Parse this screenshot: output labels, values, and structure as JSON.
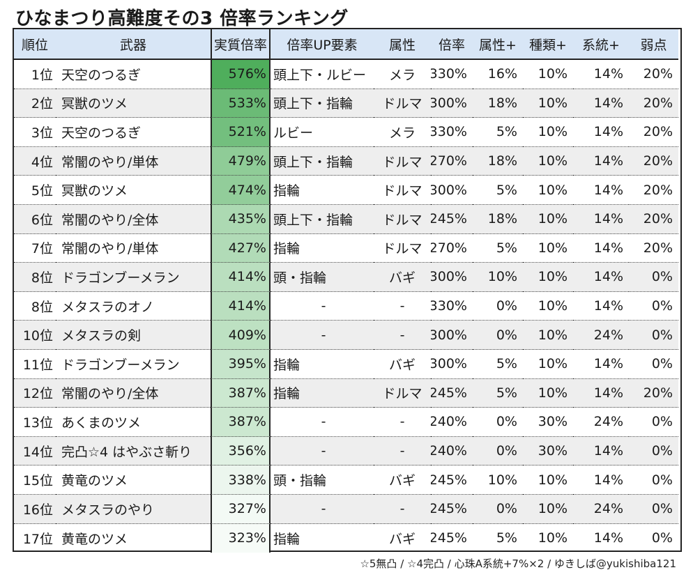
{
  "title": "ひなまつり高難度その3 倍率ランキング",
  "headers": [
    "順位",
    "武器",
    "実質倍率",
    "倍率UP要素",
    "属性",
    "倍率",
    "属性+",
    "種類+",
    "系統+",
    "弱点"
  ],
  "colors": {
    "header_bg": "#d8e6f6",
    "row_alt_bg": "#eeeeee",
    "eff_high": "#4fae5c",
    "eff_low": "#f6fbf7"
  },
  "rows": [
    {
      "rank": "1位",
      "weapon": "天空のつるぎ",
      "eff": "576%",
      "eff_value": 576,
      "up": "頭上下・ルビー",
      "attr": "メラ",
      "mult": "330%",
      "attr_plus": "16%",
      "kind_plus": "10%",
      "line_plus": "14%",
      "weak": "20%"
    },
    {
      "rank": "2位",
      "weapon": "冥獣のツメ",
      "eff": "533%",
      "eff_value": 533,
      "up": "頭上下・指輪",
      "attr": "ドルマ",
      "mult": "300%",
      "attr_plus": "18%",
      "kind_plus": "10%",
      "line_plus": "14%",
      "weak": "20%"
    },
    {
      "rank": "3位",
      "weapon": "天空のつるぎ",
      "eff": "521%",
      "eff_value": 521,
      "up": "ルビー",
      "attr": "メラ",
      "mult": "330%",
      "attr_plus": "5%",
      "kind_plus": "10%",
      "line_plus": "14%",
      "weak": "20%"
    },
    {
      "rank": "4位",
      "weapon": "常闇のやり/単体",
      "eff": "479%",
      "eff_value": 479,
      "up": "頭上下・指輪",
      "attr": "ドルマ",
      "mult": "270%",
      "attr_plus": "18%",
      "kind_plus": "10%",
      "line_plus": "14%",
      "weak": "20%"
    },
    {
      "rank": "5位",
      "weapon": "冥獣のツメ",
      "eff": "474%",
      "eff_value": 474,
      "up": "指輪",
      "attr": "ドルマ",
      "mult": "300%",
      "attr_plus": "5%",
      "kind_plus": "10%",
      "line_plus": "14%",
      "weak": "20%"
    },
    {
      "rank": "6位",
      "weapon": "常闇のやり/全体",
      "eff": "435%",
      "eff_value": 435,
      "up": "頭上下・指輪",
      "attr": "ドルマ",
      "mult": "245%",
      "attr_plus": "18%",
      "kind_plus": "10%",
      "line_plus": "14%",
      "weak": "20%"
    },
    {
      "rank": "7位",
      "weapon": "常闇のやり/単体",
      "eff": "427%",
      "eff_value": 427,
      "up": "指輪",
      "attr": "ドルマ",
      "mult": "270%",
      "attr_plus": "5%",
      "kind_plus": "10%",
      "line_plus": "14%",
      "weak": "20%"
    },
    {
      "rank": "8位",
      "weapon": "ドラゴンブーメラン",
      "eff": "414%",
      "eff_value": 414,
      "up": "頭・指輪",
      "attr": "バギ",
      "mult": "300%",
      "attr_plus": "10%",
      "kind_plus": "10%",
      "line_plus": "14%",
      "weak": "0%"
    },
    {
      "rank": "8位",
      "weapon": "メタスラのオノ",
      "eff": "414%",
      "eff_value": 414,
      "up": "-",
      "attr": "-",
      "mult": "330%",
      "attr_plus": "0%",
      "kind_plus": "10%",
      "line_plus": "14%",
      "weak": "0%"
    },
    {
      "rank": "10位",
      "weapon": "メタスラの剣",
      "eff": "409%",
      "eff_value": 409,
      "up": "-",
      "attr": "-",
      "mult": "300%",
      "attr_plus": "0%",
      "kind_plus": "10%",
      "line_plus": "24%",
      "weak": "0%"
    },
    {
      "rank": "11位",
      "weapon": "ドラゴンブーメラン",
      "eff": "395%",
      "eff_value": 395,
      "up": "指輪",
      "attr": "バギ",
      "mult": "300%",
      "attr_plus": "5%",
      "kind_plus": "10%",
      "line_plus": "14%",
      "weak": "0%"
    },
    {
      "rank": "12位",
      "weapon": "常闇のやり/全体",
      "eff": "387%",
      "eff_value": 387,
      "up": "指輪",
      "attr": "ドルマ",
      "mult": "245%",
      "attr_plus": "5%",
      "kind_plus": "10%",
      "line_plus": "14%",
      "weak": "20%"
    },
    {
      "rank": "13位",
      "weapon": "あくまのツメ",
      "eff": "387%",
      "eff_value": 387,
      "up": "-",
      "attr": "-",
      "mult": "240%",
      "attr_plus": "0%",
      "kind_plus": "30%",
      "line_plus": "24%",
      "weak": "0%"
    },
    {
      "rank": "14位",
      "weapon": "完凸☆4 はやぶさ斬り",
      "eff": "356%",
      "eff_value": 356,
      "up": "-",
      "attr": "-",
      "mult": "240%",
      "attr_plus": "0%",
      "kind_plus": "30%",
      "line_plus": "14%",
      "weak": "0%"
    },
    {
      "rank": "15位",
      "weapon": "黄竜のツメ",
      "eff": "338%",
      "eff_value": 338,
      "up": "頭・指輪",
      "attr": "バギ",
      "mult": "245%",
      "attr_plus": "10%",
      "kind_plus": "10%",
      "line_plus": "14%",
      "weak": "0%"
    },
    {
      "rank": "16位",
      "weapon": "メタスラのやり",
      "eff": "327%",
      "eff_value": 327,
      "up": "-",
      "attr": "-",
      "mult": "245%",
      "attr_plus": "0%",
      "kind_plus": "10%",
      "line_plus": "24%",
      "weak": "0%"
    },
    {
      "rank": "17位",
      "weapon": "黄竜のツメ",
      "eff": "323%",
      "eff_value": 323,
      "up": "指輪",
      "attr": "バギ",
      "mult": "245%",
      "attr_plus": "5%",
      "kind_plus": "10%",
      "line_plus": "14%",
      "weak": "0%"
    }
  ],
  "footer": "☆5無凸 / ☆4完凸 / 心珠A系統+7%×2 / ゆきしば@yukishiba121"
}
